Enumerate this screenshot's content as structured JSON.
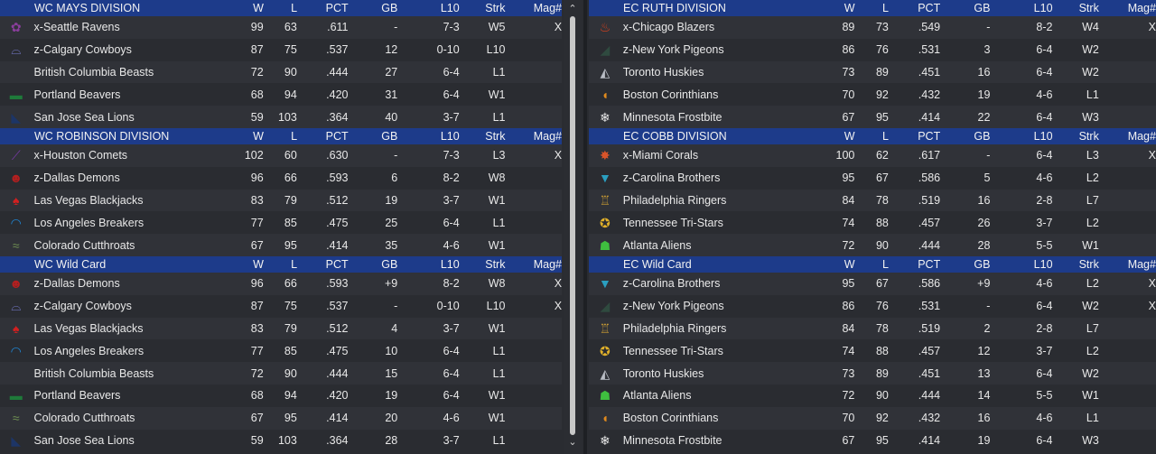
{
  "columns": {
    "w": "W",
    "l": "L",
    "pct": "PCT",
    "gb": "GB",
    "l10": "L10",
    "strk": "Strk",
    "mag": "Mag#"
  },
  "left_sections": [
    {
      "title": "WC MAYS DIVISION",
      "rows": [
        {
          "icon": "raven-logo",
          "color": "#8a3e9c",
          "glyph": "✿",
          "team": "x-Seattle Ravens",
          "w": "99",
          "l": "63",
          "pct": ".611",
          "gb": "-",
          "l10": "7-3",
          "strk": "W5",
          "mag": "X"
        },
        {
          "icon": "cowboy-hat-logo",
          "color": "#7b7fd6",
          "glyph": "⌓",
          "team": "z-Calgary Cowboys",
          "w": "87",
          "l": "75",
          "pct": ".537",
          "gb": "12",
          "l10": "0-10",
          "strk": "L10",
          "mag": ""
        },
        {
          "icon": "beast-logo",
          "color": "#2a2c31",
          "glyph": "",
          "team": "British Columbia Beasts",
          "w": "72",
          "l": "90",
          "pct": ".444",
          "gb": "27",
          "l10": "6-4",
          "strk": "L1",
          "mag": ""
        },
        {
          "icon": "beaver-logo",
          "color": "#1f7a3a",
          "glyph": "▬",
          "team": "Portland Beavers",
          "w": "68",
          "l": "94",
          "pct": ".420",
          "gb": "31",
          "l10": "6-4",
          "strk": "W1",
          "mag": ""
        },
        {
          "icon": "sea-lion-logo",
          "color": "#1d3566",
          "glyph": "◣",
          "team": "San Jose Sea Lions",
          "w": "59",
          "l": "103",
          "pct": ".364",
          "gb": "40",
          "l10": "3-7",
          "strk": "L1",
          "mag": ""
        }
      ]
    },
    {
      "title": "WC ROBINSON DIVISION",
      "rows": [
        {
          "icon": "comet-logo",
          "color": "#7a3aa8",
          "glyph": "⟋",
          "team": "x-Houston Comets",
          "w": "102",
          "l": "60",
          "pct": ".630",
          "gb": "-",
          "l10": "7-3",
          "strk": "L3",
          "mag": "X"
        },
        {
          "icon": "demon-logo",
          "color": "#b51f1f",
          "glyph": "☻",
          "team": "z-Dallas Demons",
          "w": "96",
          "l": "66",
          "pct": ".593",
          "gb": "6",
          "l10": "8-2",
          "strk": "W8",
          "mag": ""
        },
        {
          "icon": "blackjack-logo",
          "color": "#d12020",
          "glyph": "♠",
          "team": "Las Vegas Blackjacks",
          "w": "83",
          "l": "79",
          "pct": ".512",
          "gb": "19",
          "l10": "3-7",
          "strk": "W1",
          "mag": ""
        },
        {
          "icon": "wave-logo",
          "color": "#1f88d8",
          "glyph": "◠",
          "team": "Los Angeles Breakers",
          "w": "77",
          "l": "85",
          "pct": ".475",
          "gb": "25",
          "l10": "6-4",
          "strk": "L1",
          "mag": ""
        },
        {
          "icon": "cutthroat-logo",
          "color": "#6e8f52",
          "glyph": "≈",
          "team": "Colorado Cutthroats",
          "w": "67",
          "l": "95",
          "pct": ".414",
          "gb": "35",
          "l10": "4-6",
          "strk": "W1",
          "mag": ""
        }
      ]
    },
    {
      "title": "WC  Wild Card",
      "rows": [
        {
          "icon": "demon-logo",
          "color": "#b51f1f",
          "glyph": "☻",
          "team": "z-Dallas Demons",
          "w": "96",
          "l": "66",
          "pct": ".593",
          "gb": "+9",
          "l10": "8-2",
          "strk": "W8",
          "mag": "X"
        },
        {
          "icon": "cowboy-hat-logo",
          "color": "#7b7fd6",
          "glyph": "⌓",
          "team": "z-Calgary Cowboys",
          "w": "87",
          "l": "75",
          "pct": ".537",
          "gb": "-",
          "l10": "0-10",
          "strk": "L10",
          "mag": "X"
        },
        {
          "icon": "blackjack-logo",
          "color": "#d12020",
          "glyph": "♠",
          "team": "Las Vegas Blackjacks",
          "w": "83",
          "l": "79",
          "pct": ".512",
          "gb": "4",
          "l10": "3-7",
          "strk": "W1",
          "mag": ""
        },
        {
          "icon": "wave-logo",
          "color": "#1f88d8",
          "glyph": "◠",
          "team": "Los Angeles Breakers",
          "w": "77",
          "l": "85",
          "pct": ".475",
          "gb": "10",
          "l10": "6-4",
          "strk": "L1",
          "mag": ""
        },
        {
          "icon": "beast-logo",
          "color": "#2a2c31",
          "glyph": "",
          "team": "British Columbia Beasts",
          "w": "72",
          "l": "90",
          "pct": ".444",
          "gb": "15",
          "l10": "6-4",
          "strk": "L1",
          "mag": ""
        },
        {
          "icon": "beaver-logo",
          "color": "#1f7a3a",
          "glyph": "▬",
          "team": "Portland Beavers",
          "w": "68",
          "l": "94",
          "pct": ".420",
          "gb": "19",
          "l10": "6-4",
          "strk": "W1",
          "mag": ""
        },
        {
          "icon": "cutthroat-logo",
          "color": "#6e8f52",
          "glyph": "≈",
          "team": "Colorado Cutthroats",
          "w": "67",
          "l": "95",
          "pct": ".414",
          "gb": "20",
          "l10": "4-6",
          "strk": "W1",
          "mag": ""
        },
        {
          "icon": "sea-lion-logo",
          "color": "#1d3566",
          "glyph": "◣",
          "team": "San Jose Sea Lions",
          "w": "59",
          "l": "103",
          "pct": ".364",
          "gb": "28",
          "l10": "3-7",
          "strk": "L1",
          "mag": ""
        }
      ]
    }
  ],
  "right_sections": [
    {
      "title": "EC RUTH DIVISION",
      "rows": [
        {
          "icon": "flame-logo",
          "color": "#e0401b",
          "glyph": "♨",
          "team": "x-Chicago Blazers",
          "w": "89",
          "l": "73",
          "pct": ".549",
          "gb": "-",
          "l10": "8-2",
          "strk": "W4",
          "mag": "X"
        },
        {
          "icon": "pigeon-logo",
          "color": "#2f4a3f",
          "glyph": "◢",
          "team": "z-New York Pigeons",
          "w": "86",
          "l": "76",
          "pct": ".531",
          "gb": "3",
          "l10": "6-4",
          "strk": "W2",
          "mag": ""
        },
        {
          "icon": "husky-logo",
          "color": "#b8bcc4",
          "glyph": "◭",
          "team": "Toronto Huskies",
          "w": "73",
          "l": "89",
          "pct": ".451",
          "gb": "16",
          "l10": "6-4",
          "strk": "W2",
          "mag": ""
        },
        {
          "icon": "helmet-logo",
          "color": "#e08a1e",
          "glyph": "◖",
          "team": "Boston Corinthians",
          "w": "70",
          "l": "92",
          "pct": ".432",
          "gb": "19",
          "l10": "4-6",
          "strk": "L1",
          "mag": ""
        },
        {
          "icon": "snowflake-logo",
          "color": "#e6e6e6",
          "glyph": "❄",
          "team": "Minnesota Frostbite",
          "w": "67",
          "l": "95",
          "pct": ".414",
          "gb": "22",
          "l10": "6-4",
          "strk": "W3",
          "mag": ""
        }
      ]
    },
    {
      "title": "EC COBB DIVISION",
      "rows": [
        {
          "icon": "coral-logo",
          "color": "#d9542a",
          "glyph": "✸",
          "team": "x-Miami Corals",
          "w": "100",
          "l": "62",
          "pct": ".617",
          "gb": "-",
          "l10": "6-4",
          "strk": "L3",
          "mag": "X"
        },
        {
          "icon": "diamond-logo",
          "color": "#2a9fc0",
          "glyph": "▼",
          "team": "z-Carolina Brothers",
          "w": "95",
          "l": "67",
          "pct": ".586",
          "gb": "5",
          "l10": "4-6",
          "strk": "L2",
          "mag": ""
        },
        {
          "icon": "bell-logo",
          "color": "#c79a35",
          "glyph": "♖",
          "team": "Philadelphia Ringers",
          "w": "84",
          "l": "78",
          "pct": ".519",
          "gb": "16",
          "l10": "2-8",
          "strk": "L7",
          "mag": ""
        },
        {
          "icon": "tri-star-logo",
          "color": "#e0b02a",
          "glyph": "✪",
          "team": "Tennessee Tri-Stars",
          "w": "74",
          "l": "88",
          "pct": ".457",
          "gb": "26",
          "l10": "3-7",
          "strk": "L2",
          "mag": ""
        },
        {
          "icon": "alien-logo",
          "color": "#3fbf3f",
          "glyph": "☗",
          "team": "Atlanta Aliens",
          "w": "72",
          "l": "90",
          "pct": ".444",
          "gb": "28",
          "l10": "5-5",
          "strk": "W1",
          "mag": ""
        }
      ]
    },
    {
      "title": "EC  Wild Card",
      "rows": [
        {
          "icon": "diamond-logo",
          "color": "#2a9fc0",
          "glyph": "▼",
          "team": "z-Carolina Brothers",
          "w": "95",
          "l": "67",
          "pct": ".586",
          "gb": "+9",
          "l10": "4-6",
          "strk": "L2",
          "mag": "X"
        },
        {
          "icon": "pigeon-logo",
          "color": "#2f4a3f",
          "glyph": "◢",
          "team": "z-New York Pigeons",
          "w": "86",
          "l": "76",
          "pct": ".531",
          "gb": "-",
          "l10": "6-4",
          "strk": "W2",
          "mag": "X"
        },
        {
          "icon": "bell-logo",
          "color": "#c79a35",
          "glyph": "♖",
          "team": "Philadelphia Ringers",
          "w": "84",
          "l": "78",
          "pct": ".519",
          "gb": "2",
          "l10": "2-8",
          "strk": "L7",
          "mag": ""
        },
        {
          "icon": "tri-star-logo",
          "color": "#e0b02a",
          "glyph": "✪",
          "team": "Tennessee Tri-Stars",
          "w": "74",
          "l": "88",
          "pct": ".457",
          "gb": "12",
          "l10": "3-7",
          "strk": "L2",
          "mag": ""
        },
        {
          "icon": "husky-logo",
          "color": "#b8bcc4",
          "glyph": "◭",
          "team": "Toronto Huskies",
          "w": "73",
          "l": "89",
          "pct": ".451",
          "gb": "13",
          "l10": "6-4",
          "strk": "W2",
          "mag": ""
        },
        {
          "icon": "alien-logo",
          "color": "#3fbf3f",
          "glyph": "☗",
          "team": "Atlanta Aliens",
          "w": "72",
          "l": "90",
          "pct": ".444",
          "gb": "14",
          "l10": "5-5",
          "strk": "W1",
          "mag": ""
        },
        {
          "icon": "helmet-logo",
          "color": "#e08a1e",
          "glyph": "◖",
          "team": "Boston Corinthians",
          "w": "70",
          "l": "92",
          "pct": ".432",
          "gb": "16",
          "l10": "4-6",
          "strk": "L1",
          "mag": ""
        },
        {
          "icon": "snowflake-logo",
          "color": "#e6e6e6",
          "glyph": "❄",
          "team": "Minnesota Frostbite",
          "w": "67",
          "l": "95",
          "pct": ".414",
          "gb": "19",
          "l10": "6-4",
          "strk": "W3",
          "mag": ""
        }
      ]
    }
  ],
  "scrollbar": {
    "up_glyph": "⌃",
    "down_glyph": "⌄"
  }
}
